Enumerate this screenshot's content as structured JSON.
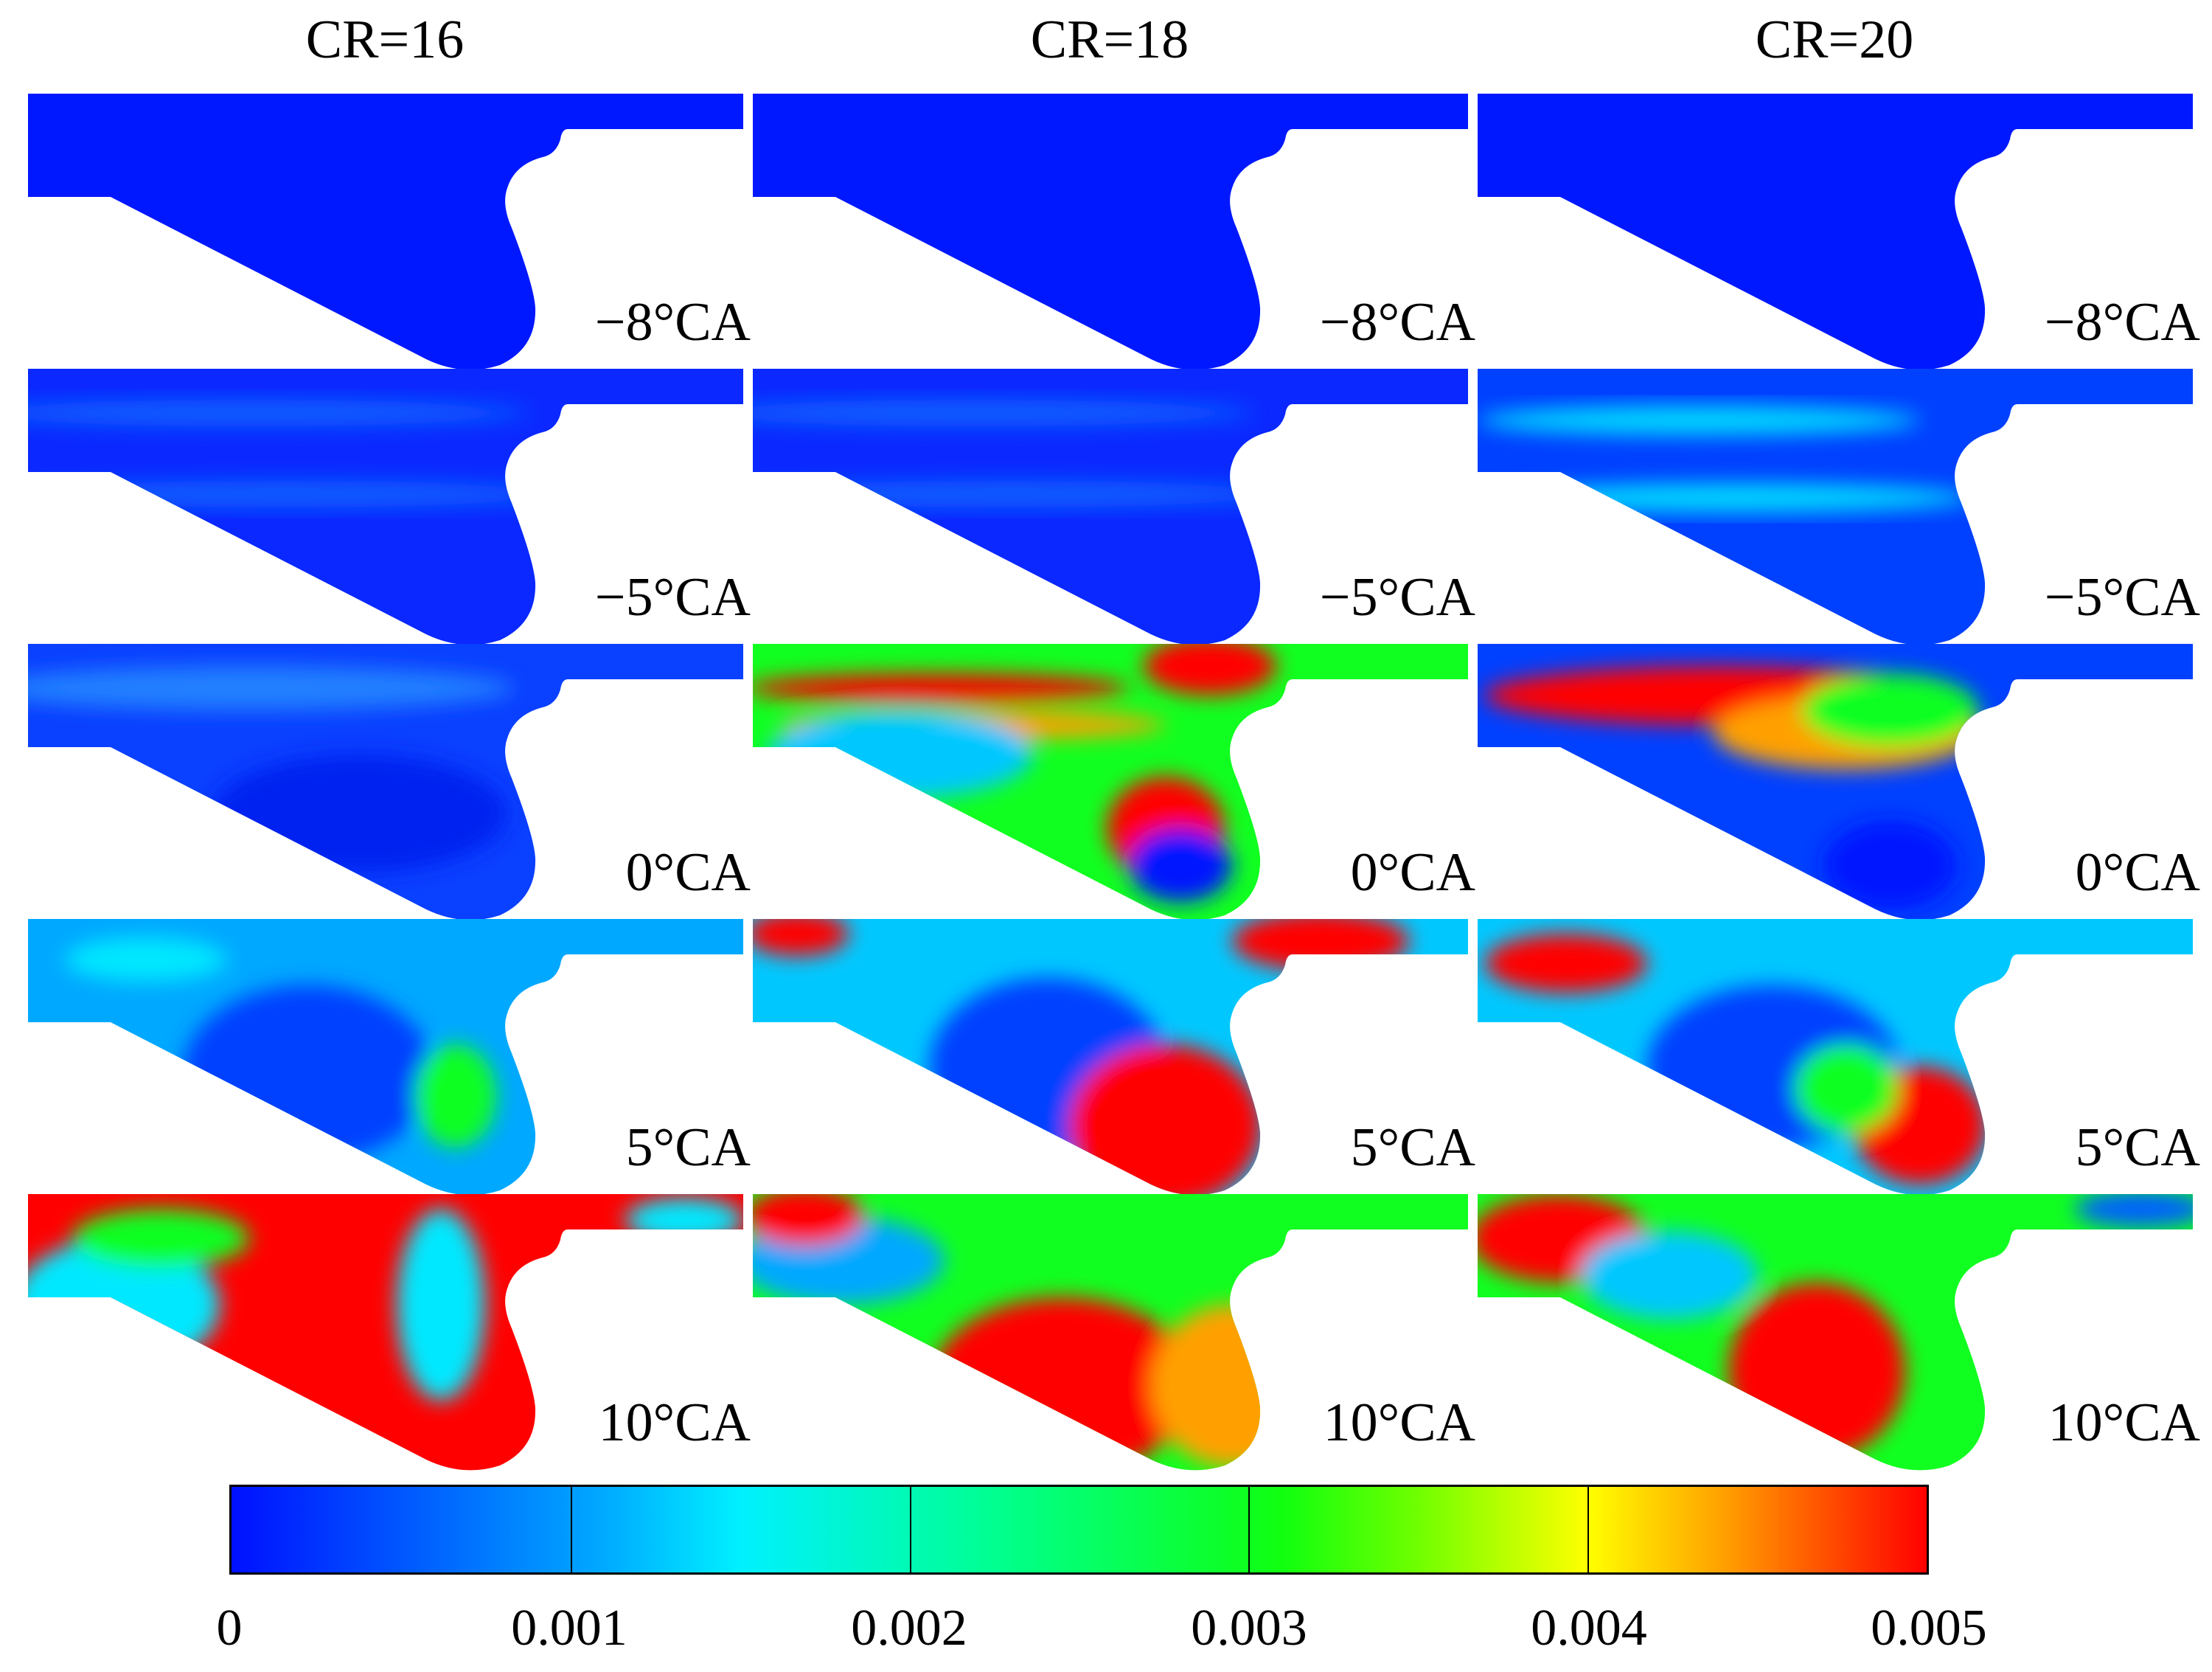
{
  "figure": {
    "columns": [
      "CR=16",
      "CR=18",
      "CR=20"
    ],
    "rows": [
      "−8°CA",
      "−5°CA",
      "0°CA",
      "5°CA",
      "10°CA"
    ]
  },
  "colorbar": {
    "ticks": [
      "0",
      "0.001",
      "0.002",
      "0.003",
      "0.004",
      "0.005"
    ],
    "colors": [
      "#0000ff",
      "#00ffff",
      "#00ff00",
      "#ffff00",
      "#ff0000"
    ]
  }
}
